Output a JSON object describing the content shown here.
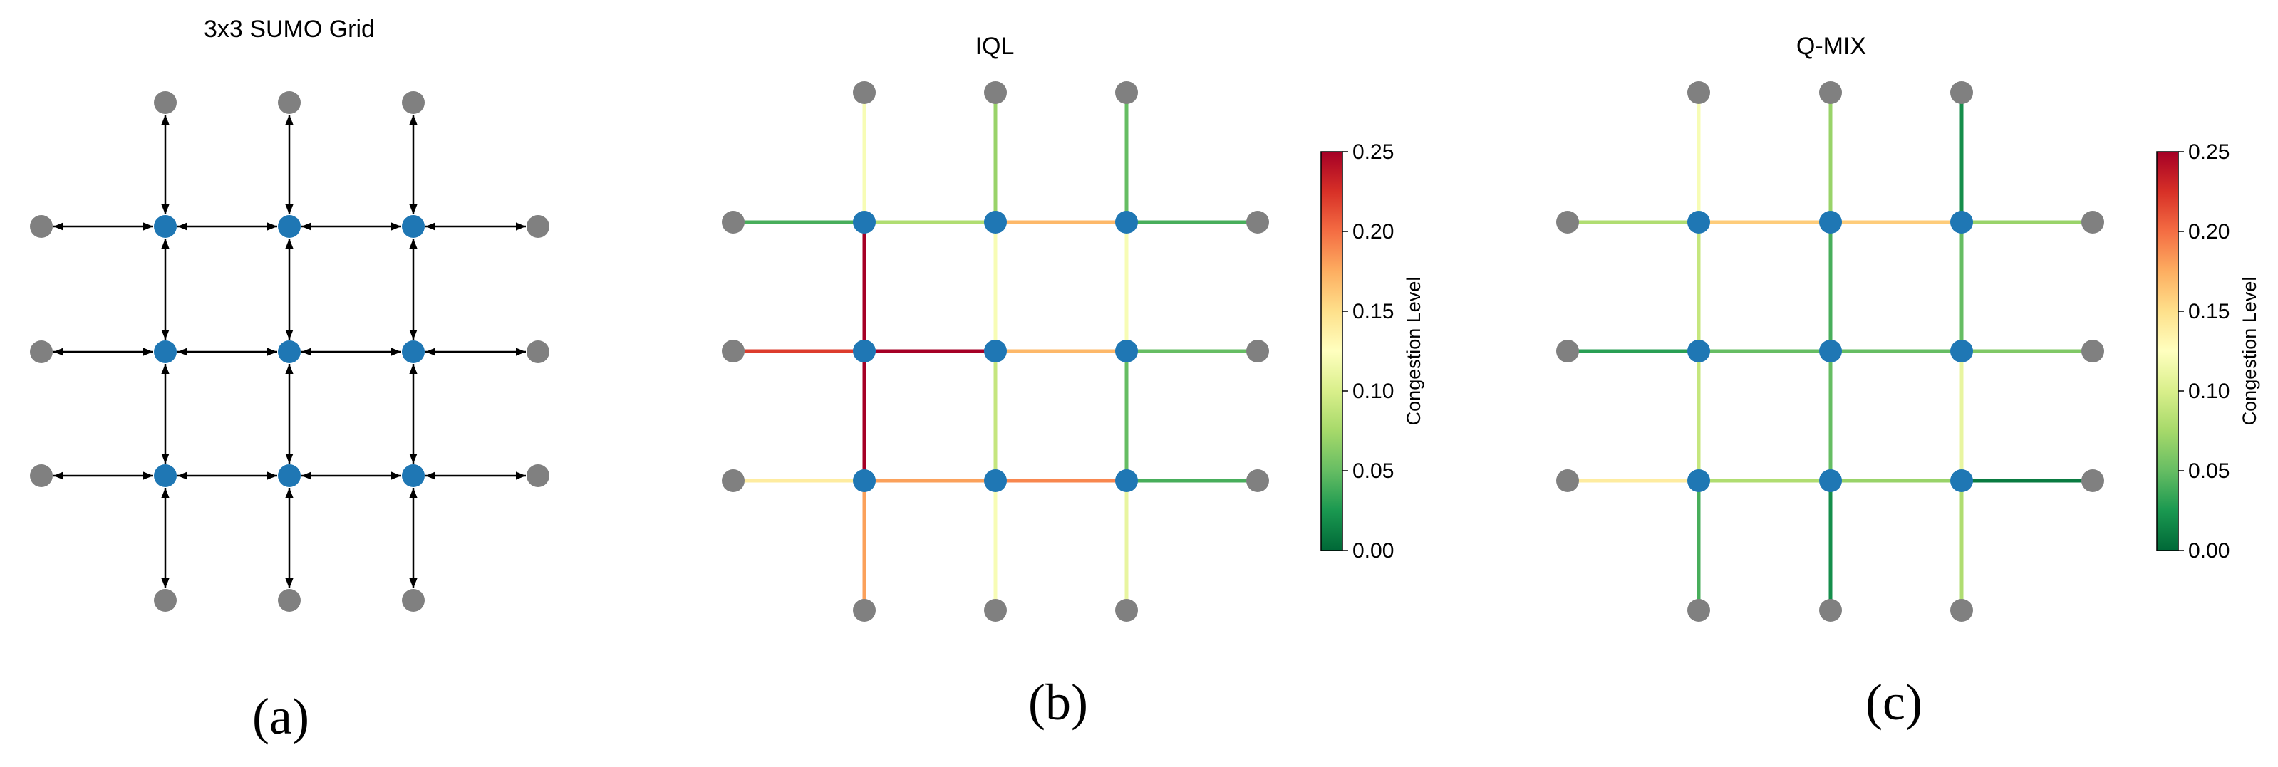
{
  "panels": {
    "a": {
      "title": "3x3 SUMO Grid",
      "caption": "(a)"
    },
    "b": {
      "title": "IQL",
      "caption": "(b)",
      "colorbar": {
        "label": "Congestion Level",
        "ticks": [
          "0.00",
          "0.05",
          "0.10",
          "0.15",
          "0.20",
          "0.25"
        ]
      }
    },
    "c": {
      "title": "Q-MIX",
      "caption": "(c)",
      "colorbar": {
        "label": "Congestion Level",
        "ticks": [
          "0.00",
          "0.05",
          "0.10",
          "0.15",
          "0.20",
          "0.25"
        ]
      }
    }
  },
  "colors": {
    "intersection_node": "#1f77b4",
    "boundary_node": "#808080",
    "edge_default": "#000000"
  },
  "colormap": {
    "name": "RdYlGn_r",
    "range": [
      0,
      0.25
    ],
    "stops": [
      "#006837",
      "#1a9850",
      "#66bd63",
      "#a6d96a",
      "#d9ef8b",
      "#ffffbf",
      "#fee08b",
      "#fdae61",
      "#f46d43",
      "#d73027",
      "#a50026"
    ]
  },
  "congestion": {
    "iql": {
      "row0": [
        0.04,
        0.08,
        0.17,
        0.04
      ],
      "row1": [
        0.22,
        0.25,
        0.17,
        0.05
      ],
      "row2": [
        0.14,
        0.18,
        0.19,
        0.04
      ],
      "col0": [
        0.12,
        0.25,
        0.25,
        0.18
      ],
      "col1": [
        0.07,
        0.12,
        0.09,
        0.12
      ],
      "col2": [
        0.05,
        0.12,
        0.05,
        0.11
      ]
    },
    "qmix": {
      "row0": [
        0.08,
        0.16,
        0.16,
        0.07
      ],
      "row1": [
        0.03,
        0.05,
        0.05,
        0.06
      ],
      "row2": [
        0.14,
        0.08,
        0.07,
        0.01
      ],
      "col0": [
        0.12,
        0.09,
        0.09,
        0.04
      ],
      "col1": [
        0.07,
        0.04,
        0.05,
        0.02
      ],
      "col2": [
        0.02,
        0.05,
        0.11,
        0.08
      ]
    }
  }
}
